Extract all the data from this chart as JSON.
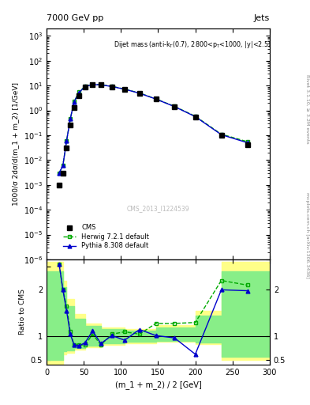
{
  "title_top": "7000 GeV pp",
  "title_right": "Jets",
  "watermark": "CMS_2013_I1224539",
  "ylabel_main": "1000/σ 2dσ/d(m_1 + m_2) [1/GeV]",
  "ylabel_ratio": "Ratio to CMS",
  "xlabel": "(m_1 + m_2) / 2 [GeV]",
  "ylim_main": [
    1e-06,
    2000
  ],
  "ylim_ratio": [
    0.4,
    2.65
  ],
  "xlim": [
    0,
    300
  ],
  "cms_x": [
    17,
    22,
    27,
    32,
    37,
    44,
    52,
    62,
    73,
    88,
    105,
    125,
    147,
    172,
    200,
    235,
    270
  ],
  "cms_y": [
    0.001,
    0.003,
    0.03,
    0.25,
    1.3,
    4.0,
    8.5,
    10.8,
    10.5,
    9.0,
    7.0,
    4.8,
    2.8,
    1.4,
    0.55,
    0.1,
    0.04
  ],
  "herwig_x": [
    17,
    22,
    27,
    32,
    37,
    44,
    52,
    62,
    73,
    88,
    105,
    125,
    147,
    172,
    200,
    235,
    270
  ],
  "herwig_y": [
    0.003,
    0.006,
    0.06,
    0.45,
    2.3,
    5.5,
    9.5,
    11.2,
    10.9,
    9.3,
    7.2,
    5.0,
    2.9,
    1.45,
    0.58,
    0.11,
    0.055
  ],
  "pythia_x": [
    17,
    22,
    27,
    32,
    37,
    44,
    52,
    62,
    73,
    88,
    105,
    125,
    147,
    172,
    200,
    235,
    270
  ],
  "pythia_y": [
    0.003,
    0.006,
    0.06,
    0.45,
    2.2,
    5.3,
    9.2,
    10.9,
    10.7,
    9.1,
    7.1,
    4.9,
    2.85,
    1.42,
    0.56,
    0.105,
    0.05
  ],
  "ratio_herwig_x": [
    17,
    22,
    27,
    32,
    37,
    44,
    52,
    62,
    73,
    88,
    105,
    125,
    147,
    172,
    200,
    235,
    270
  ],
  "ratio_herwig_y": [
    2.55,
    2.0,
    1.65,
    1.1,
    0.82,
    0.82,
    0.82,
    1.05,
    0.82,
    1.05,
    1.1,
    1.05,
    1.28,
    1.28,
    1.3,
    2.2,
    2.1
  ],
  "ratio_pythia_x": [
    17,
    22,
    27,
    32,
    37,
    44,
    52,
    62,
    73,
    88,
    105,
    125,
    147,
    172,
    200,
    235,
    270
  ],
  "ratio_pythia_y": [
    2.55,
    2.0,
    1.55,
    1.05,
    0.82,
    0.8,
    0.87,
    1.12,
    0.85,
    1.02,
    0.92,
    1.15,
    1.02,
    0.97,
    0.62,
    2.0,
    1.98
  ],
  "band_yellow_x": [
    0,
    17,
    22,
    27,
    37,
    52,
    73,
    105,
    147,
    200,
    235,
    270,
    300
  ],
  "band_yellow_lo": [
    0.4,
    0.4,
    0.62,
    0.65,
    0.72,
    0.77,
    0.82,
    0.86,
    0.88,
    0.84,
    0.5,
    0.5,
    0.5
  ],
  "band_yellow_hi": [
    2.6,
    2.6,
    2.2,
    1.8,
    1.48,
    1.28,
    1.2,
    1.16,
    1.24,
    1.55,
    2.6,
    2.6,
    2.6
  ],
  "band_green_x": [
    0,
    17,
    22,
    27,
    37,
    52,
    73,
    105,
    147,
    200,
    235,
    270,
    300
  ],
  "band_green_lo": [
    0.5,
    0.5,
    0.68,
    0.7,
    0.76,
    0.81,
    0.85,
    0.88,
    0.9,
    0.87,
    0.57,
    0.57,
    0.57
  ],
  "band_green_hi": [
    2.4,
    2.4,
    2.05,
    1.65,
    1.38,
    1.22,
    1.16,
    1.12,
    1.2,
    1.45,
    2.4,
    2.4,
    2.4
  ],
  "cms_color": "#000000",
  "herwig_color": "#00aa00",
  "pythia_color": "#0000cc",
  "yellow_color": "#ffff88",
  "green_color": "#88ee88",
  "right_label": "Rivet 3.1.10, ≥ 3.2M events",
  "arxiv_label": "mcplots.cern.ch [arXiv:1306.3436]"
}
